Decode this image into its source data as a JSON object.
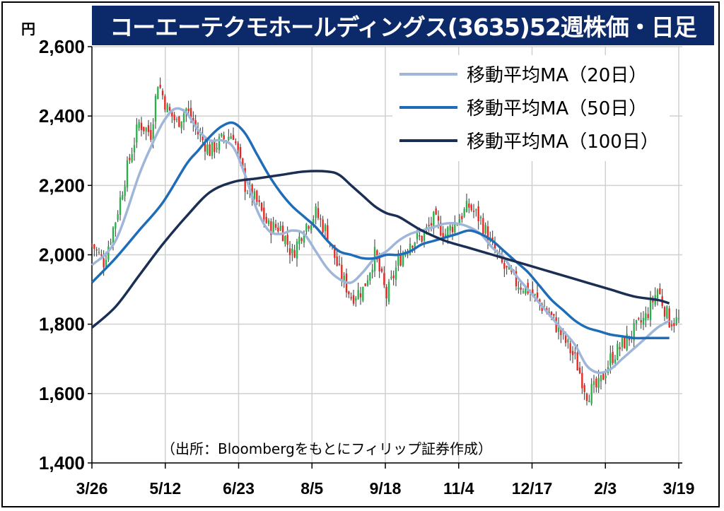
{
  "title": "コーエーテクモホールディングス(3635)52週株価・日足",
  "source_note": "（出所：Bloombergをもとにフィリップ証券作成）",
  "colors": {
    "title_bg": "#0c2a69",
    "up_candle": "#2ab04a",
    "down_candle": "#e8251f",
    "wick": "#333333",
    "grid": "#d0d0d0",
    "ma20": "#9fb6d8",
    "ma50": "#1f6db8",
    "ma100": "#1b2f55"
  },
  "chart_data": {
    "type": "candlestick",
    "ylabel": "円",
    "ylim": [
      1400,
      2600
    ],
    "yticks": [
      1400,
      1600,
      1800,
      2000,
      2200,
      2400,
      2600
    ],
    "yticks_labels": [
      "1,400",
      "1,600",
      "1,800",
      "2,000",
      "2,200",
      "2,400",
      "2,600"
    ],
    "xticks": [
      "3/26",
      "5/12",
      "6/23",
      "8/5",
      "9/18",
      "11/4",
      "12/17",
      "2/3",
      "3/19"
    ],
    "legend_position": "top-right",
    "grid": true,
    "price_anchors": {
      "trading_days": [
        0,
        5,
        10,
        15,
        20,
        25,
        28,
        32,
        36,
        40,
        45,
        50,
        55,
        60,
        65,
        70,
        75,
        80,
        85,
        90,
        95,
        100,
        105,
        110,
        115,
        120,
        125,
        130,
        135,
        140,
        145,
        150,
        155,
        160,
        165,
        170,
        175,
        180,
        185,
        190,
        195,
        200,
        205,
        210,
        215,
        220,
        225,
        230,
        235,
        240,
        245
      ],
      "close": [
        2030,
        1980,
        2100,
        2250,
        2380,
        2350,
        2500,
        2420,
        2380,
        2420,
        2350,
        2300,
        2330,
        2350,
        2200,
        2150,
        2080,
        2080,
        2000,
        2080,
        2120,
        2060,
        1950,
        1880,
        1900,
        2000,
        1880,
        1980,
        2040,
        2050,
        2100,
        2060,
        2100,
        2140,
        2100,
        2020,
        1960,
        1920,
        1900,
        1860,
        1820,
        1760,
        1700,
        1600,
        1620,
        1700,
        1740,
        1780,
        1820,
        1900,
        1810
      ]
    },
    "series": [
      {
        "name": "移動平均MA（20日）",
        "kind": "ma",
        "period": 20,
        "x": [
          0,
          10,
          20,
          25,
          30,
          35,
          40,
          45,
          50,
          55,
          60,
          65,
          70,
          75,
          80,
          85,
          90,
          95,
          100,
          105,
          110,
          115,
          120,
          125,
          130,
          135,
          140,
          145,
          150,
          155,
          160,
          165,
          170,
          175,
          180,
          185,
          190,
          195,
          200,
          205,
          210,
          215,
          220,
          225,
          230,
          235,
          240,
          245
        ],
        "y": [
          1970,
          2040,
          2230,
          2310,
          2380,
          2420,
          2410,
          2360,
          2330,
          2330,
          2310,
          2230,
          2130,
          2070,
          2060,
          2070,
          2060,
          2010,
          1960,
          1930,
          1920,
          1950,
          1990,
          2010,
          2040,
          2060,
          2070,
          2080,
          2090,
          2090,
          2080,
          2060,
          2020,
          1990,
          1940,
          1900,
          1860,
          1820,
          1780,
          1740,
          1680,
          1660,
          1670,
          1700,
          1730,
          1760,
          1790,
          1810
        ]
      },
      {
        "name": "移動平均MA（50日）",
        "kind": "ma",
        "period": 50,
        "x": [
          0,
          10,
          20,
          30,
          40,
          45,
          50,
          55,
          60,
          65,
          70,
          75,
          80,
          85,
          90,
          95,
          100,
          105,
          110,
          115,
          120,
          125,
          130,
          135,
          140,
          145,
          150,
          155,
          160,
          165,
          170,
          175,
          180,
          185,
          190,
          195,
          200,
          205,
          210,
          215,
          220,
          225,
          230,
          235,
          240,
          245
        ],
        "y": [
          1920,
          1990,
          2070,
          2150,
          2260,
          2300,
          2340,
          2370,
          2380,
          2350,
          2290,
          2230,
          2180,
          2140,
          2110,
          2080,
          2040,
          2010,
          2000,
          1990,
          1990,
          2000,
          2000,
          2010,
          2030,
          2040,
          2050,
          2060,
          2070,
          2060,
          2040,
          2010,
          1980,
          1950,
          1910,
          1870,
          1840,
          1810,
          1790,
          1780,
          1770,
          1765,
          1760,
          1760,
          1760,
          1760
        ]
      },
      {
        "name": "移動平均MA（100日）",
        "kind": "ma",
        "period": 100,
        "x": [
          0,
          10,
          20,
          30,
          40,
          50,
          60,
          70,
          80,
          90,
          100,
          105,
          110,
          115,
          120,
          125,
          130,
          135,
          140,
          150,
          160,
          170,
          180,
          190,
          200,
          210,
          220,
          230,
          240,
          245
        ],
        "y": [
          1790,
          1850,
          1940,
          2030,
          2110,
          2180,
          2210,
          2220,
          2230,
          2240,
          2240,
          2230,
          2200,
          2170,
          2140,
          2120,
          2110,
          2090,
          2070,
          2040,
          2020,
          2000,
          1980,
          1960,
          1940,
          1920,
          1900,
          1880,
          1870,
          1860
        ]
      }
    ]
  }
}
